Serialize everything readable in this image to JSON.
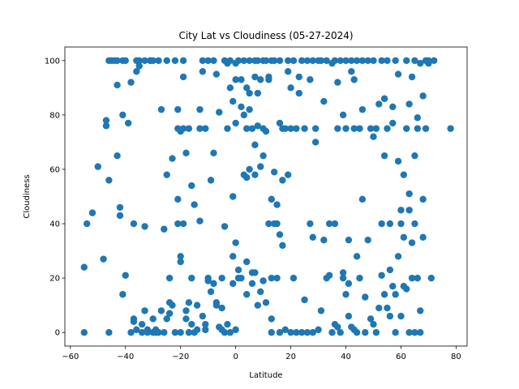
{
  "chart_data": {
    "type": "scatter",
    "title": "City Lat vs Cloudiness (05-27-2024)",
    "xlabel": "Latitude",
    "ylabel": "Cloudiness",
    "xlim": [
      -62,
      84
    ],
    "ylim": [
      -5,
      105
    ],
    "xticks": [
      -60,
      -40,
      -20,
      0,
      20,
      40,
      60,
      80
    ],
    "yticks": [
      0,
      20,
      40,
      60,
      80,
      100
    ],
    "grid": false,
    "color": "#1f77b4",
    "series": [
      {
        "points": [
          [
            -55,
            0
          ],
          [
            -55,
            24
          ],
          [
            -54,
            40
          ],
          [
            -52,
            44
          ],
          [
            -50,
            61
          ],
          [
            -48,
            27
          ],
          [
            -47,
            78
          ],
          [
            -47,
            76
          ],
          [
            -46,
            56
          ],
          [
            -46,
            0
          ],
          [
            -46,
            100
          ],
          [
            -45,
            100
          ],
          [
            -44,
            100
          ],
          [
            -43,
            100
          ],
          [
            -43,
            65
          ],
          [
            -43,
            91
          ],
          [
            -42,
            43
          ],
          [
            -42,
            46
          ],
          [
            -41,
            100
          ],
          [
            -41,
            80
          ],
          [
            -41,
            14
          ],
          [
            -40,
            21
          ],
          [
            -40,
            100
          ],
          [
            -39,
            77
          ],
          [
            -38,
            92
          ],
          [
            -38,
            0
          ],
          [
            -37,
            40
          ],
          [
            -37,
            5
          ],
          [
            -37,
            4
          ],
          [
            -36,
            96
          ],
          [
            -36,
            1
          ],
          [
            -36,
            100
          ],
          [
            -35,
            100
          ],
          [
            -35,
            98
          ],
          [
            -34,
            3
          ],
          [
            -34,
            0
          ],
          [
            -33,
            8
          ],
          [
            -33,
            100
          ],
          [
            -33,
            39
          ],
          [
            -32,
            1
          ],
          [
            -32,
            0
          ],
          [
            -31,
            100
          ],
          [
            -31,
            100
          ],
          [
            -30,
            0
          ],
          [
            -30,
            5
          ],
          [
            -30,
            100
          ],
          [
            -29,
            1
          ],
          [
            -29,
            0
          ],
          [
            -28,
            0
          ],
          [
            -28,
            100
          ],
          [
            -27,
            82
          ],
          [
            -27,
            8
          ],
          [
            -26,
            38
          ],
          [
            -26,
            0
          ],
          [
            -25,
            5
          ],
          [
            -25,
            100
          ],
          [
            -25,
            58
          ],
          [
            -24,
            7
          ],
          [
            -24,
            20
          ],
          [
            -24,
            11
          ],
          [
            -23,
            64
          ],
          [
            -23,
            10
          ],
          [
            -22,
            100
          ],
          [
            -22,
            0
          ],
          [
            -21,
            82
          ],
          [
            -21,
            75
          ],
          [
            -21,
            49
          ],
          [
            -21,
            40
          ],
          [
            -20,
            28
          ],
          [
            -20,
            26
          ],
          [
            -20,
            0
          ],
          [
            -20,
            74
          ],
          [
            -19,
            100
          ],
          [
            -19,
            94
          ],
          [
            -19,
            75
          ],
          [
            -19,
            40
          ],
          [
            -18,
            8
          ],
          [
            -18,
            66
          ],
          [
            -18,
            5
          ],
          [
            -17,
            0
          ],
          [
            -17,
            75
          ],
          [
            -17,
            11
          ],
          [
            -16,
            3
          ],
          [
            -16,
            54
          ],
          [
            -16,
            20
          ],
          [
            -15,
            47
          ],
          [
            -15,
            0
          ],
          [
            -14,
            10
          ],
          [
            -14,
            1
          ],
          [
            -13,
            82
          ],
          [
            -13,
            75
          ],
          [
            -13,
            41
          ],
          [
            -12,
            6
          ],
          [
            -12,
            100
          ],
          [
            -12,
            96
          ],
          [
            -11,
            75
          ],
          [
            -11,
            1
          ],
          [
            -11,
            3
          ],
          [
            -10,
            100
          ],
          [
            -10,
            19
          ],
          [
            -10,
            20
          ],
          [
            -9,
            56
          ],
          [
            -9,
            15
          ],
          [
            -8,
            100
          ],
          [
            -8,
            66
          ],
          [
            -8,
            18
          ],
          [
            -7,
            11
          ],
          [
            -7,
            95
          ],
          [
            -7,
            10
          ],
          [
            -6,
            81
          ],
          [
            -6,
            2
          ],
          [
            -5,
            20
          ],
          [
            -5,
            9
          ],
          [
            -5,
            1
          ],
          [
            -4,
            0
          ],
          [
            -4,
            100
          ],
          [
            -4,
            39
          ],
          [
            -3,
            75
          ],
          [
            -3,
            99
          ],
          [
            -3,
            3
          ],
          [
            -2,
            90
          ],
          [
            -2,
            100
          ],
          [
            -2,
            0
          ],
          [
            -1,
            85
          ],
          [
            -1,
            50
          ],
          [
            -1,
            28
          ],
          [
            -1,
            18
          ],
          [
            0,
            1
          ],
          [
            0,
            33
          ],
          [
            0,
            77
          ],
          [
            0,
            99
          ],
          [
            0,
            93
          ],
          [
            1,
            20
          ],
          [
            1,
            100
          ],
          [
            1,
            23
          ],
          [
            2,
            83
          ],
          [
            2,
            20
          ],
          [
            2,
            93
          ],
          [
            3,
            58
          ],
          [
            3,
            100
          ],
          [
            3,
            80
          ],
          [
            4,
            90
          ],
          [
            4,
            75
          ],
          [
            4,
            57
          ],
          [
            4,
            26
          ],
          [
            4,
            14
          ],
          [
            5,
            100
          ],
          [
            5,
            88
          ],
          [
            5,
            60
          ],
          [
            5,
            82
          ],
          [
            6,
            75
          ],
          [
            6,
            22
          ],
          [
            6,
            18
          ],
          [
            7,
            94
          ],
          [
            7,
            100
          ],
          [
            7,
            69
          ],
          [
            7,
            22
          ],
          [
            7,
            58
          ],
          [
            8,
            88
          ],
          [
            8,
            76
          ],
          [
            8,
            10
          ],
          [
            8,
            100
          ],
          [
            9,
            61
          ],
          [
            9,
            15
          ],
          [
            9,
            93
          ],
          [
            10,
            65
          ],
          [
            10,
            19
          ],
          [
            10,
            100
          ],
          [
            10,
            75
          ],
          [
            11,
            11
          ],
          [
            11,
            74
          ],
          [
            11,
            100
          ],
          [
            12,
            93
          ],
          [
            12,
            40
          ],
          [
            12,
            94
          ],
          [
            13,
            49
          ],
          [
            13,
            20
          ],
          [
            13,
            5
          ],
          [
            13,
            100
          ],
          [
            13,
            0
          ],
          [
            14,
            59
          ],
          [
            14,
            40
          ],
          [
            14,
            100
          ],
          [
            15,
            40
          ],
          [
            15,
            47
          ],
          [
            15,
            20
          ],
          [
            16,
            77
          ],
          [
            16,
            36
          ],
          [
            16,
            100
          ],
          [
            16,
            0
          ],
          [
            17,
            75
          ],
          [
            17,
            32
          ],
          [
            17,
            56
          ],
          [
            18,
            75
          ],
          [
            18,
            1
          ],
          [
            19,
            58
          ],
          [
            19,
            100
          ],
          [
            19,
            96
          ],
          [
            20,
            75
          ],
          [
            20,
            0
          ],
          [
            20,
            90
          ],
          [
            21,
            100
          ],
          [
            21,
            20
          ],
          [
            22,
            75
          ],
          [
            22,
            0
          ],
          [
            23,
            88
          ],
          [
            23,
            94
          ],
          [
            24,
            100
          ],
          [
            24,
            0
          ],
          [
            25,
            75
          ],
          [
            25,
            12
          ],
          [
            26,
            100
          ],
          [
            26,
            0
          ],
          [
            27,
            93
          ],
          [
            27,
            40
          ],
          [
            28,
            35
          ],
          [
            28,
            100
          ],
          [
            28,
            0
          ],
          [
            29,
            70
          ],
          [
            29,
            75
          ],
          [
            30,
            100
          ],
          [
            30,
            1
          ],
          [
            31,
            8
          ],
          [
            31,
            100
          ],
          [
            32,
            85
          ],
          [
            32,
            34
          ],
          [
            33,
            100
          ],
          [
            33,
            20
          ],
          [
            34,
            40
          ],
          [
            34,
            21
          ],
          [
            35,
            99
          ],
          [
            35,
            0
          ],
          [
            36,
            40
          ],
          [
            36,
            3
          ],
          [
            36,
            100
          ],
          [
            37,
            92
          ],
          [
            37,
            75
          ],
          [
            37,
            2
          ],
          [
            38,
            100
          ],
          [
            38,
            0
          ],
          [
            39,
            80
          ],
          [
            39,
            20
          ],
          [
            39,
            22
          ],
          [
            40,
            75
          ],
          [
            40,
            14
          ],
          [
            40,
            100
          ],
          [
            41,
            34
          ],
          [
            41,
            6
          ],
          [
            41,
            18
          ],
          [
            42,
            100
          ],
          [
            42,
            96
          ],
          [
            42,
            2
          ],
          [
            43,
            93
          ],
          [
            43,
            75
          ],
          [
            43,
            1
          ],
          [
            44,
            100
          ],
          [
            44,
            28
          ],
          [
            44,
            0
          ],
          [
            45,
            75
          ],
          [
            45,
            20
          ],
          [
            46,
            100
          ],
          [
            46,
            82
          ],
          [
            46,
            49
          ],
          [
            47,
            0
          ],
          [
            47,
            13
          ],
          [
            48,
            100
          ],
          [
            48,
            34
          ],
          [
            49,
            75
          ],
          [
            49,
            5
          ],
          [
            50,
            72
          ],
          [
            50,
            100
          ],
          [
            50,
            3
          ],
          [
            51,
            75
          ],
          [
            51,
            0
          ],
          [
            52,
            84
          ],
          [
            52,
            9
          ],
          [
            53,
            100
          ],
          [
            53,
            40
          ],
          [
            53,
            21
          ],
          [
            54,
            65
          ],
          [
            54,
            86
          ],
          [
            54,
            14
          ],
          [
            55,
            100
          ],
          [
            55,
            9
          ],
          [
            55,
            75
          ],
          [
            56,
            23
          ],
          [
            56,
            6
          ],
          [
            56,
            40
          ],
          [
            57,
            83
          ],
          [
            57,
            17
          ],
          [
            57,
            77
          ],
          [
            58,
            100
          ],
          [
            58,
            14
          ],
          [
            58,
            0
          ],
          [
            59,
            63
          ],
          [
            59,
            95
          ],
          [
            59,
            28
          ],
          [
            60,
            45
          ],
          [
            60,
            40
          ],
          [
            60,
            6
          ],
          [
            61,
            58
          ],
          [
            61,
            35
          ],
          [
            61,
            17
          ],
          [
            62,
            100
          ],
          [
            62,
            75
          ],
          [
            62,
            16
          ],
          [
            63,
            45
          ],
          [
            63,
            51
          ],
          [
            63,
            84
          ],
          [
            63,
            0
          ],
          [
            64,
            94
          ],
          [
            64,
            33
          ],
          [
            64,
            20
          ],
          [
            65,
            65
          ],
          [
            65,
            40
          ],
          [
            65,
            100
          ],
          [
            65,
            0
          ],
          [
            66,
            75
          ],
          [
            66,
            20
          ],
          [
            66,
            79
          ],
          [
            67,
            99
          ],
          [
            67,
            8
          ],
          [
            67,
            0
          ],
          [
            68,
            87
          ],
          [
            68,
            49
          ],
          [
            68,
            35
          ],
          [
            69,
            100
          ],
          [
            69,
            75
          ],
          [
            70,
            99
          ],
          [
            70,
            100
          ],
          [
            71,
            20
          ],
          [
            72,
            100
          ],
          [
            78,
            75
          ]
        ]
      }
    ]
  }
}
